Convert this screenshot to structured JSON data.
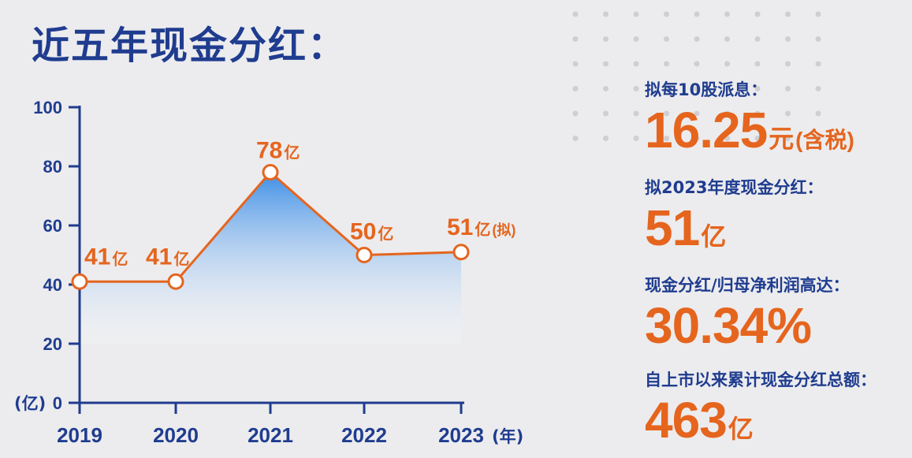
{
  "title": "近五年现金分红：",
  "chart_data": {
    "type": "area",
    "x": [
      "2019",
      "2020",
      "2021",
      "2022",
      "2023"
    ],
    "values": [
      41,
      41,
      78,
      50,
      51
    ],
    "ylim": [
      0,
      100
    ],
    "yticks": [
      0,
      20,
      40,
      60,
      80,
      100
    ],
    "ytick_labels": [
      "0",
      "20",
      "40",
      "60",
      "80",
      "100"
    ],
    "ylabel": "(亿)",
    "xlabel": "(年)",
    "data_labels": [
      {
        "value": "41",
        "unit": "亿",
        "note": ""
      },
      {
        "value": "41",
        "unit": "亿",
        "note": ""
      },
      {
        "value": "78",
        "unit": "亿",
        "note": ""
      },
      {
        "value": "50",
        "unit": "亿",
        "note": ""
      },
      {
        "value": "51",
        "unit": "亿",
        "note": "(拟)"
      }
    ],
    "colors": {
      "axis": "#1f3c8f",
      "line": "#e5651e",
      "area_top": "#3d8ee6",
      "area_bottom": "#ffffff"
    }
  },
  "stats": [
    {
      "label": "拟每10股派息：",
      "value": "16.25",
      "unit": "元",
      "note": "(含税)"
    },
    {
      "label": "拟2023年度现金分红：",
      "value": "51",
      "unit": "亿",
      "note": ""
    },
    {
      "label": "现金分红/归母净利润高达：",
      "value": "30.34%",
      "unit": "",
      "note": ""
    },
    {
      "label": "自上市以来累计现金分红总额：",
      "value": "463",
      "unit": "亿",
      "note": ""
    }
  ]
}
